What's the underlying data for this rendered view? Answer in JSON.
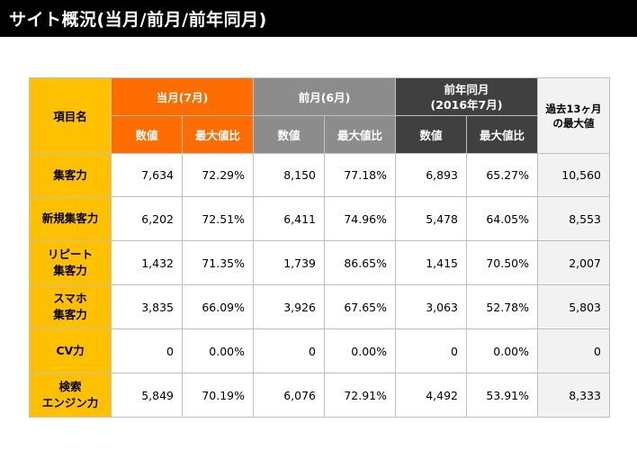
{
  "page": {
    "title": "サイト概況(当月/前月/前年同月)"
  },
  "table": {
    "corner_label": "項目名",
    "groups": {
      "current": "当月(7月)",
      "previous": "前月(6月)",
      "yoy_line1": "前年同月",
      "yoy_line2": "(2016年7月)",
      "max_line1": "過去13ヶ月",
      "max_line2": "の最大値"
    },
    "sub_headers": {
      "value": "数値",
      "ratio": "最大値比"
    },
    "rows": [
      {
        "label1": "集客力",
        "label2": "",
        "cur_val": "7,634",
        "cur_ratio": "72.29%",
        "prev_val": "8,150",
        "prev_ratio": "77.18%",
        "yoy_val": "6,893",
        "yoy_ratio": "65.27%",
        "max": "10,560"
      },
      {
        "label1": "新規集客力",
        "label2": "",
        "cur_val": "6,202",
        "cur_ratio": "72.51%",
        "prev_val": "6,411",
        "prev_ratio": "74.96%",
        "yoy_val": "5,478",
        "yoy_ratio": "64.05%",
        "max": "8,553"
      },
      {
        "label1": "リピート",
        "label2": "集客力",
        "cur_val": "1,432",
        "cur_ratio": "71.35%",
        "prev_val": "1,739",
        "prev_ratio": "86.65%",
        "yoy_val": "1,415",
        "yoy_ratio": "70.50%",
        "max": "2,007"
      },
      {
        "label1": "スマホ",
        "label2": "集客力",
        "cur_val": "3,835",
        "cur_ratio": "66.09%",
        "prev_val": "3,926",
        "prev_ratio": "67.65%",
        "yoy_val": "3,063",
        "yoy_ratio": "52.78%",
        "max": "5,803"
      },
      {
        "label1": "CV力",
        "label2": "",
        "cur_val": "0",
        "cur_ratio": "0.00%",
        "prev_val": "0",
        "prev_ratio": "0.00%",
        "yoy_val": "0",
        "yoy_ratio": "0.00%",
        "max": "0"
      },
      {
        "label1": "検索",
        "label2": "エンジン力",
        "cur_val": "5,849",
        "cur_ratio": "70.19%",
        "prev_val": "6,076",
        "prev_ratio": "72.91%",
        "yoy_val": "4,492",
        "yoy_ratio": "53.91%",
        "max": "8,333"
      }
    ]
  }
}
